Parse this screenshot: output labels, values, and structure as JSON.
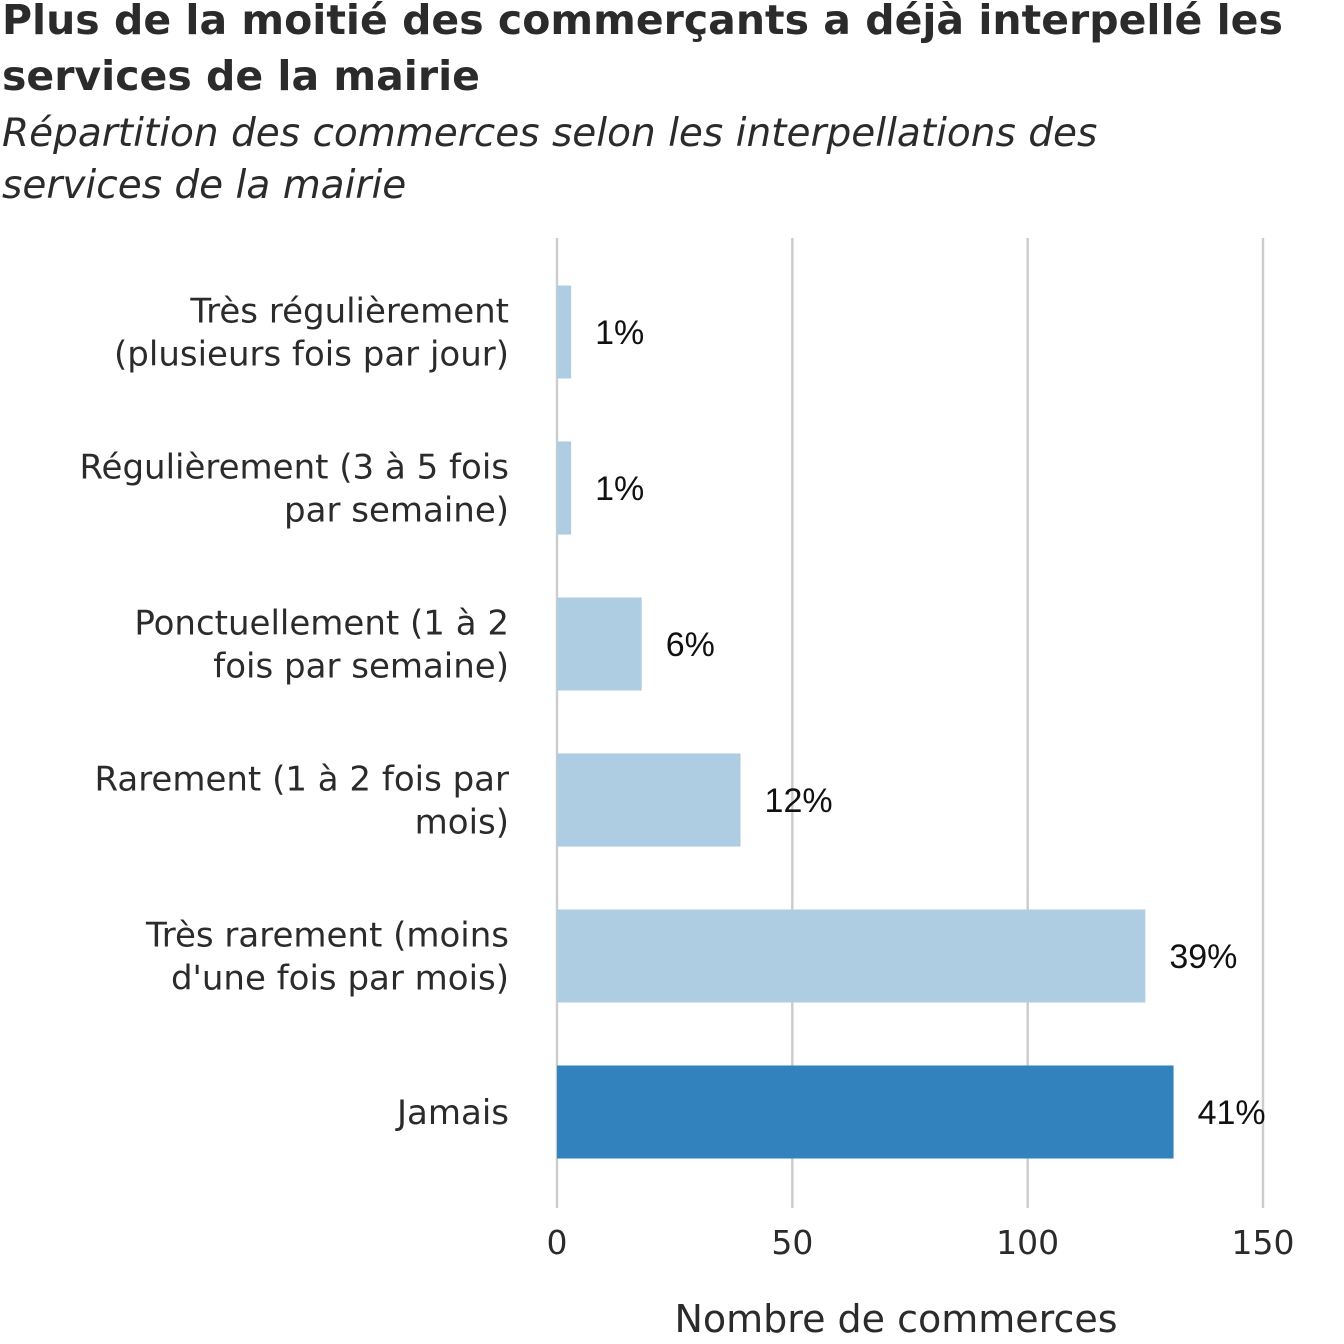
{
  "chart_data": {
    "type": "bar",
    "orientation": "horizontal",
    "title": "Plus de la moitié des commerçants a déjà interpellé les services de la mairie",
    "subtitle": "Répartition des commerces selon les interpellations des services de la mairie",
    "categories": [
      [
        "Très régulièrement",
        "(plusieurs fois par jour)"
      ],
      [
        "Régulièrement (3 à 5 fois",
        "par semaine)"
      ],
      [
        "Ponctuellement (1 à 2",
        "fois par semaine)"
      ],
      [
        "Rarement (1 à 2 fois par",
        "mois)"
      ],
      [
        "Très rarement (moins",
        "d'une fois par mois)"
      ],
      [
        "Jamais"
      ]
    ],
    "values": [
      3,
      3,
      18,
      39,
      125,
      131
    ],
    "data_labels": [
      "1%",
      "1%",
      "6%",
      "12%",
      "39%",
      "41%"
    ],
    "bar_colors": [
      "#aecde3",
      "#aecde3",
      "#aecde3",
      "#aecde3",
      "#aecde3",
      "#3182bd"
    ],
    "xlabel": "Nombre de commerces",
    "ylabel": "",
    "xlim": [
      0,
      150
    ],
    "xticks": [
      0,
      50,
      100,
      150
    ],
    "grid": true,
    "gridline_color": "#cccccc"
  }
}
